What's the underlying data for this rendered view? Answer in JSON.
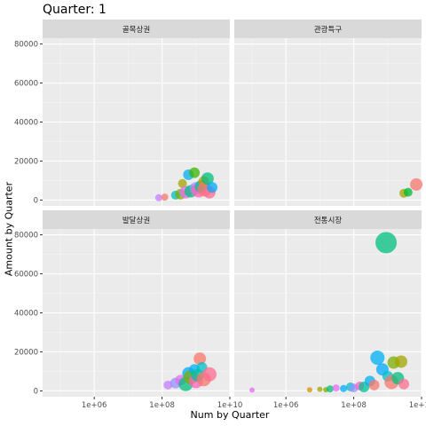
{
  "title": "Quarter: 1",
  "chart_data": {
    "type": "scatter",
    "title": "Quarter: 1",
    "xlabel": "Num by Quarter",
    "ylabel": "Amount by Quarter",
    "x_scale": "log10",
    "xlim": [
      30000,
      10000000000
    ],
    "ylim": [
      -3000,
      83000
    ],
    "x_ticks": [
      1000000,
      100000000,
      10000000000
    ],
    "x_tick_labels": [
      "1e+06",
      "1e+08",
      "1e+10"
    ],
    "y_ticks": [
      0,
      20000,
      40000,
      60000,
      80000
    ],
    "y_tick_labels": [
      "0",
      "20000",
      "40000",
      "60000",
      "80000"
    ],
    "grid": true,
    "legend": "none",
    "panels": [
      {
        "name": "골목상권",
        "points": [
          {
            "x": 80000000,
            "y": 1200,
            "size": 4,
            "color": "#C77CFF"
          },
          {
            "x": 120000000,
            "y": 1500,
            "size": 4,
            "color": "#F8766D"
          },
          {
            "x": 250000000,
            "y": 2500,
            "size": 5,
            "color": "#00BFC4"
          },
          {
            "x": 350000000,
            "y": 3000,
            "size": 6,
            "color": "#7CAE00"
          },
          {
            "x": 400000000,
            "y": 8500,
            "size": 5,
            "color": "#A3A500"
          },
          {
            "x": 500000000,
            "y": 4000,
            "size": 7,
            "color": "#E76BF3"
          },
          {
            "x": 600000000,
            "y": 13000,
            "size": 6,
            "color": "#00B0F6"
          },
          {
            "x": 700000000,
            "y": 4500,
            "size": 7,
            "color": "#00BF7D"
          },
          {
            "x": 900000000,
            "y": 14000,
            "size": 6,
            "color": "#39B600"
          },
          {
            "x": 1000000000,
            "y": 6000,
            "size": 7,
            "color": "#9590FF"
          },
          {
            "x": 1200000000,
            "y": 5000,
            "size": 8,
            "color": "#FF62BC"
          },
          {
            "x": 1400000000,
            "y": 7000,
            "size": 7,
            "color": "#00C19A"
          },
          {
            "x": 1700000000,
            "y": 9500,
            "size": 6,
            "color": "#D89000"
          },
          {
            "x": 1800000000,
            "y": 5500,
            "size": 8,
            "color": "#F8766D"
          },
          {
            "x": 2200000000,
            "y": 11000,
            "size": 7,
            "color": "#00BF7D"
          },
          {
            "x": 2500000000,
            "y": 4000,
            "size": 7,
            "color": "#FF6C91"
          },
          {
            "x": 3000000000,
            "y": 6500,
            "size": 6,
            "color": "#00A9FF"
          }
        ]
      },
      {
        "name": "관광특구",
        "points": [
          {
            "x": 3000000000,
            "y": 3500,
            "size": 5,
            "color": "#A3A500"
          },
          {
            "x": 4000000000,
            "y": 4000,
            "size": 5,
            "color": "#00BA38"
          },
          {
            "x": 7000000000,
            "y": 8000,
            "size": 7,
            "color": "#F8766D"
          }
        ]
      },
      {
        "name": "발달상권",
        "points": [
          {
            "x": 150000000,
            "y": 3000,
            "size": 5,
            "color": "#C77CFF"
          },
          {
            "x": 250000000,
            "y": 4000,
            "size": 6,
            "color": "#9590FF"
          },
          {
            "x": 350000000,
            "y": 5500,
            "size": 6,
            "color": "#E76BF3"
          },
          {
            "x": 500000000,
            "y": 3500,
            "size": 8,
            "color": "#00BF7D"
          },
          {
            "x": 600000000,
            "y": 9000,
            "size": 7,
            "color": "#00A9FF"
          },
          {
            "x": 700000000,
            "y": 7000,
            "size": 8,
            "color": "#7CAE00"
          },
          {
            "x": 900000000,
            "y": 11000,
            "size": 6,
            "color": "#00B0F6"
          },
          {
            "x": 1000000000,
            "y": 5000,
            "size": 8,
            "color": "#FF62BC"
          },
          {
            "x": 1100000000,
            "y": 8000,
            "size": 7,
            "color": "#00C19A"
          },
          {
            "x": 1300000000,
            "y": 16500,
            "size": 7,
            "color": "#F8766D"
          },
          {
            "x": 1500000000,
            "y": 12000,
            "size": 6,
            "color": "#00BFC4"
          },
          {
            "x": 1700000000,
            "y": 6000,
            "size": 8,
            "color": "#F8766D"
          },
          {
            "x": 2500000000,
            "y": 8500,
            "size": 8,
            "color": "#FF6C91"
          }
        ]
      },
      {
        "name": "전통시장",
        "points": [
          {
            "x": 100000,
            "y": 400,
            "size": 3,
            "color": "#E76BF3"
          },
          {
            "x": 5000000,
            "y": 500,
            "size": 3,
            "color": "#D89000"
          },
          {
            "x": 10000000,
            "y": 800,
            "size": 3,
            "color": "#A3A500"
          },
          {
            "x": 15000000,
            "y": 600,
            "size": 3,
            "color": "#7CAE00"
          },
          {
            "x": 20000000,
            "y": 1000,
            "size": 4,
            "color": "#00BF7D"
          },
          {
            "x": 30000000,
            "y": 1500,
            "size": 4,
            "color": "#E76BF3"
          },
          {
            "x": 50000000,
            "y": 1200,
            "size": 4,
            "color": "#00A9FF"
          },
          {
            "x": 80000000,
            "y": 2000,
            "size": 5,
            "color": "#00BFC4"
          },
          {
            "x": 100000000,
            "y": 1500,
            "size": 5,
            "color": "#9590FF"
          },
          {
            "x": 150000000,
            "y": 2500,
            "size": 5,
            "color": "#FF62BC"
          },
          {
            "x": 200000000,
            "y": 2000,
            "size": 6,
            "color": "#00C19A"
          },
          {
            "x": 300000000,
            "y": 5000,
            "size": 6,
            "color": "#00B0F6"
          },
          {
            "x": 400000000,
            "y": 3000,
            "size": 6,
            "color": "#F8766D"
          },
          {
            "x": 500000000,
            "y": 17000,
            "size": 8,
            "color": "#00B0F6"
          },
          {
            "x": 700000000,
            "y": 11000,
            "size": 7,
            "color": "#00A9FF"
          },
          {
            "x": 900000000,
            "y": 76000,
            "size": 12,
            "color": "#00BF7D"
          },
          {
            "x": 1000000000,
            "y": 7500,
            "size": 6,
            "color": "#00BFC4"
          },
          {
            "x": 1300000000,
            "y": 4500,
            "size": 8,
            "color": "#F8766D"
          },
          {
            "x": 1500000000,
            "y": 14500,
            "size": 7,
            "color": "#7CAE00"
          },
          {
            "x": 2000000000,
            "y": 6500,
            "size": 7,
            "color": "#00BF7D"
          },
          {
            "x": 2500000000,
            "y": 15000,
            "size": 7,
            "color": "#A3A500"
          },
          {
            "x": 3000000000,
            "y": 3500,
            "size": 6,
            "color": "#FF6C91"
          }
        ]
      }
    ]
  }
}
